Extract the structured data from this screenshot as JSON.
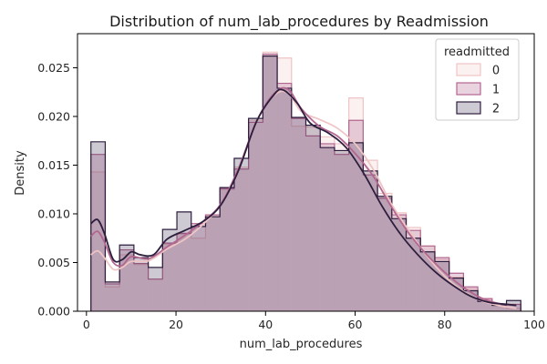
{
  "chart_data": {
    "type": "histogram",
    "title": "Distribution of num_lab_procedures by Readmission",
    "xlabel": "num_lab_procedures",
    "ylabel": "Density",
    "xlim": [
      -2,
      100
    ],
    "ylim": [
      0,
      0.0285
    ],
    "xticks": [
      0,
      20,
      40,
      60,
      80,
      100
    ],
    "yticks": [
      0.0,
      0.005,
      0.01,
      0.015,
      0.02,
      0.025
    ],
    "ytick_labels": [
      "0.000",
      "0.005",
      "0.010",
      "0.015",
      "0.020",
      "0.025"
    ],
    "bin_edges": [
      1,
      4.2,
      7.4,
      10.6,
      13.8,
      17,
      20.2,
      23.4,
      26.6,
      29.8,
      33,
      36.2,
      39.4,
      42.6,
      45.8,
      49,
      52.2,
      55.4,
      58.6,
      61.8,
      65,
      68.2,
      71.4,
      74.6,
      77.8,
      81,
      84.2,
      87.4,
      90.6,
      93.8,
      97
    ],
    "legend": {
      "title": "readmitted",
      "position": "top-right"
    },
    "series": [
      {
        "name": "0",
        "color": "#efc5c5",
        "fill": "rgba(240,200,200,0.25)",
        "density": [
          0.0143,
          0.0025,
          0.0058,
          0.0048,
          0.0033,
          0.0069,
          0.0079,
          0.0075,
          0.0099,
          0.0125,
          0.0148,
          0.0196,
          0.0266,
          0.026,
          0.019,
          0.0189,
          0.0179,
          0.0172,
          0.0219,
          0.0155,
          0.0121,
          0.0101,
          0.0086,
          0.0067,
          0.0053,
          0.0035,
          0.0023,
          0.0012,
          0.0006,
          0.0003
        ],
        "kde": [
          [
            1,
            0.0058
          ],
          [
            2.5,
            0.0062
          ],
          [
            4,
            0.0055
          ],
          [
            6,
            0.0043
          ],
          [
            8,
            0.0045
          ],
          [
            10,
            0.0051
          ],
          [
            14,
            0.0052
          ],
          [
            18,
            0.0064
          ],
          [
            22,
            0.0074
          ],
          [
            26,
            0.0089
          ],
          [
            30,
            0.011
          ],
          [
            34,
            0.0147
          ],
          [
            38,
            0.0195
          ],
          [
            42,
            0.0222
          ],
          [
            45,
            0.0224
          ],
          [
            48,
            0.0205
          ],
          [
            52,
            0.0197
          ],
          [
            56,
            0.0188
          ],
          [
            60,
            0.0172
          ],
          [
            64,
            0.0146
          ],
          [
            68,
            0.0111
          ],
          [
            72,
            0.0083
          ],
          [
            76,
            0.0057
          ],
          [
            80,
            0.0036
          ],
          [
            84,
            0.0021
          ],
          [
            88,
            0.0011
          ],
          [
            92,
            0.0006
          ],
          [
            96,
            0.0003
          ]
        ]
      },
      {
        "name": "1",
        "color": "#b3668f",
        "fill": "rgba(180,110,150,0.30)",
        "density": [
          0.0161,
          0.0028,
          0.0063,
          0.0049,
          0.0033,
          0.007,
          0.008,
          0.009,
          0.0099,
          0.0126,
          0.0146,
          0.0194,
          0.0264,
          0.0234,
          0.0198,
          0.018,
          0.0172,
          0.0161,
          0.0196,
          0.014,
          0.0116,
          0.0099,
          0.0083,
          0.0067,
          0.0055,
          0.0039,
          0.0025,
          0.0013,
          0.0006,
          0.0007
        ],
        "kde": [
          [
            1,
            0.0077
          ],
          [
            2.5,
            0.0082
          ],
          [
            4,
            0.0071
          ],
          [
            6,
            0.005
          ],
          [
            8,
            0.0047
          ],
          [
            10,
            0.0056
          ],
          [
            14,
            0.0054
          ],
          [
            18,
            0.0066
          ],
          [
            22,
            0.0078
          ],
          [
            26,
            0.0092
          ],
          [
            30,
            0.011
          ],
          [
            34,
            0.0147
          ],
          [
            38,
            0.0195
          ],
          [
            42,
            0.0224
          ],
          [
            45,
            0.0228
          ],
          [
            48,
            0.0208
          ],
          [
            52,
            0.019
          ],
          [
            56,
            0.018
          ],
          [
            60,
            0.0162
          ],
          [
            64,
            0.0139
          ],
          [
            68,
            0.0108
          ],
          [
            72,
            0.008
          ],
          [
            76,
            0.0058
          ],
          [
            80,
            0.004
          ],
          [
            84,
            0.0025
          ],
          [
            88,
            0.0014
          ],
          [
            92,
            0.0008
          ],
          [
            96,
            0.0006
          ]
        ]
      },
      {
        "name": "2",
        "color": "#2d1e3e",
        "fill": "rgba(60,45,80,0.25)",
        "density": [
          0.0174,
          0.003,
          0.0068,
          0.0055,
          0.0045,
          0.0084,
          0.0102,
          0.0087,
          0.0097,
          0.0127,
          0.0157,
          0.0198,
          0.0262,
          0.0229,
          0.0199,
          0.0191,
          0.0168,
          0.0165,
          0.0173,
          0.0144,
          0.0118,
          0.0095,
          0.0075,
          0.0061,
          0.0051,
          0.0034,
          0.0021,
          0.001,
          0.0006,
          0.0011
        ],
        "kde": [
          [
            1,
            0.009
          ],
          [
            2.5,
            0.0094
          ],
          [
            4,
            0.008
          ],
          [
            6,
            0.0053
          ],
          [
            8,
            0.0053
          ],
          [
            10,
            0.0061
          ],
          [
            12,
            0.0058
          ],
          [
            15,
            0.0058
          ],
          [
            18,
            0.0074
          ],
          [
            22,
            0.0083
          ],
          [
            26,
            0.0092
          ],
          [
            30,
            0.0109
          ],
          [
            34,
            0.0145
          ],
          [
            38,
            0.0195
          ],
          [
            42,
            0.0223
          ],
          [
            44,
            0.0227
          ],
          [
            47,
            0.0214
          ],
          [
            50,
            0.0193
          ],
          [
            54,
            0.0183
          ],
          [
            58,
            0.0168
          ],
          [
            62,
            0.0141
          ],
          [
            66,
            0.0108
          ],
          [
            70,
            0.008
          ],
          [
            74,
            0.0058
          ],
          [
            78,
            0.004
          ],
          [
            82,
            0.0026
          ],
          [
            86,
            0.0015
          ],
          [
            90,
            0.0009
          ],
          [
            94,
            0.0007
          ],
          [
            96,
            0.0006
          ]
        ]
      }
    ]
  }
}
